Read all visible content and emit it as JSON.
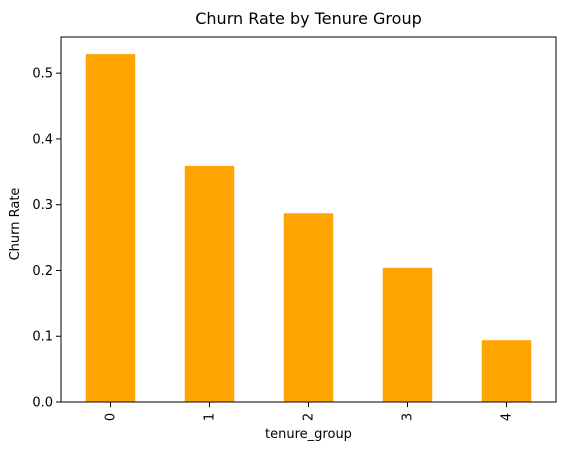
{
  "chart_data": {
    "type": "bar",
    "title": "Churn Rate by Tenure Group",
    "xlabel": "tenure_group",
    "ylabel": "Churn Rate",
    "categories": [
      "0",
      "1",
      "2",
      "3",
      "4"
    ],
    "values": [
      0.529,
      0.359,
      0.287,
      0.204,
      0.094
    ],
    "ylim": [
      0,
      0.555
    ],
    "yticks": [
      0.0,
      0.1,
      0.2,
      0.3,
      0.4,
      0.5
    ],
    "ytick_labels": [
      "0.0",
      "0.1",
      "0.2",
      "0.3",
      "0.4",
      "0.5"
    ],
    "bar_color": "#FFA500",
    "grid": false,
    "legend": "none"
  }
}
